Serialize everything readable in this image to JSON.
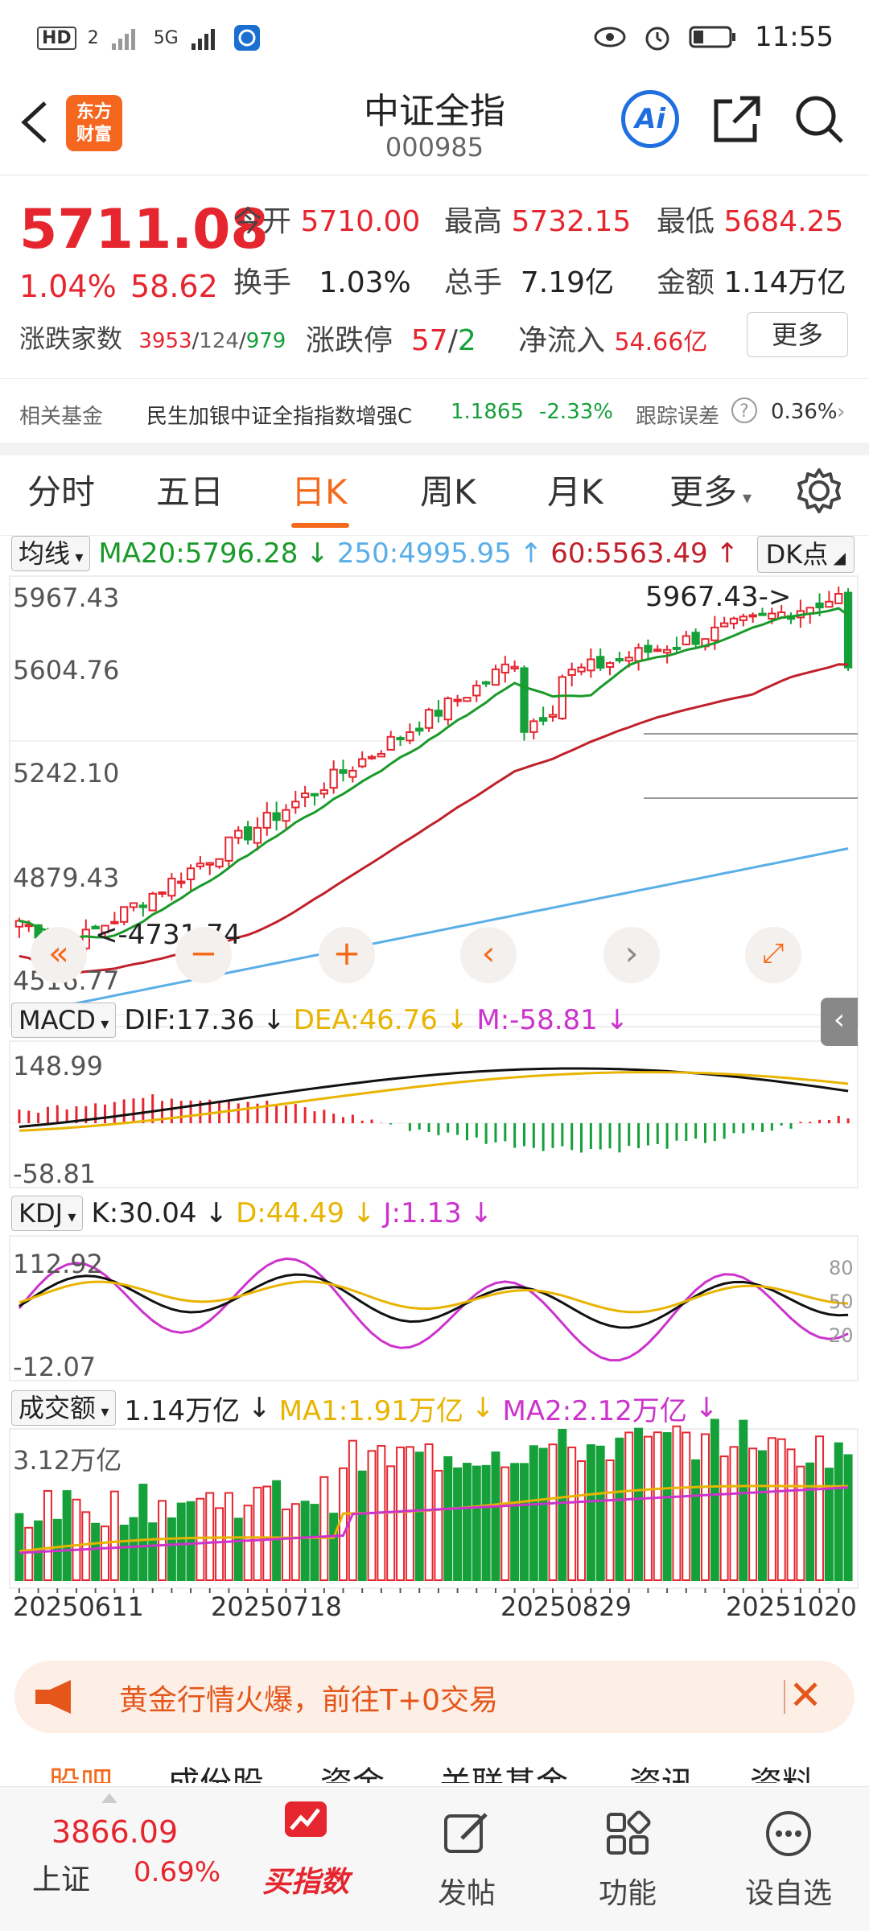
{
  "status_bar": {
    "left": [
      "HD",
      "2",
      "5G"
    ],
    "time": "11:55"
  },
  "header": {
    "logo_line1": "东方",
    "logo_line2": "财富",
    "title": "中证全指",
    "code": "000985",
    "ai_label": "Ai"
  },
  "quote": {
    "price": "5711.08",
    "change_pct": "1.04%",
    "change": "58.62",
    "open_label": "今开",
    "open": "5710.00",
    "high_label": "最高",
    "high": "5732.15",
    "low_label": "最低",
    "low": "5684.25",
    "turnover_label": "换手",
    "turnover": "1.03%",
    "volume_label": "总手",
    "volume": "7.19亿",
    "amount_label": "金额",
    "amount": "1.14万亿",
    "updown_label": "涨跌家数",
    "up": "3953",
    "flat": "124",
    "down": "979",
    "limit_label": "涨跌停",
    "limit_up": "57",
    "limit_down": "2",
    "netflow_label": "净流入",
    "netflow": "54.66亿",
    "more": "更多"
  },
  "fund": {
    "label": "相关基金",
    "name": "民生加银中证全指指数增强C",
    "nav": "1.1865",
    "chg": "-2.33%",
    "err_label": "跟踪误差",
    "err_value": "0.36%"
  },
  "tabs": [
    "分时",
    "五日",
    "日K",
    "周K",
    "月K",
    "更多"
  ],
  "ma_row": {
    "selector": "均线",
    "ma20": "MA20:5796.28",
    "ma250": "250:4995.95",
    "ma60": "60:5563.49",
    "dk": "DK点"
  },
  "kline_axis": [
    "5967.43",
    "5604.76",
    "5242.10",
    "4879.43",
    "4516.77"
  ],
  "kline_annot": {
    "high": "5967.43->",
    "low": "<-4731.74"
  },
  "macd_row": {
    "selector": "MACD",
    "dif": "DIF:17.36",
    "dea": "DEA:46.76",
    "m": "M:-58.81",
    "top": "148.99",
    "bottom": "-58.81"
  },
  "kdj_row": {
    "selector": "KDJ",
    "k": "K:30.04",
    "d": "D:44.49",
    "j": "J:1.13",
    "top": "112.92",
    "bottom": "-12.07",
    "r80": "80",
    "r50": "50",
    "r20": "20"
  },
  "vol_row": {
    "selector": "成交额",
    "val": "1.14万亿",
    "ma1": "MA1:1.91万亿",
    "ma2": "MA2:2.12万亿",
    "top": "3.12万亿"
  },
  "dates": [
    "20250611",
    "20250718",
    "20250829",
    "20251020"
  ],
  "banner": {
    "text": "黄金行情火爆，前往T+0交易"
  },
  "subtabs": [
    "股吧",
    "成份股",
    "资金",
    "关联基金",
    "资讯",
    "资料"
  ],
  "bottom_nav": {
    "sh_value": "3866.09",
    "sh_label": "上证",
    "sh_pct": "0.69%",
    "buy": "买指数",
    "post": "发帖",
    "func": "功能",
    "watch": "设自选"
  },
  "colors": {
    "up": "#e5262f",
    "down": "#15a03a",
    "accent": "#f56a1a",
    "ma20": "#1a9a2a",
    "ma60": "#c0212a",
    "ma250": "#5aaee8",
    "dea": "#e8b400",
    "j": "#cc33cc"
  },
  "chart_data": {
    "type": "candlestick",
    "x": [
      "20250611",
      "20250718",
      "20250829",
      "20251020"
    ],
    "ylim": [
      4516.77,
      5967.43
    ],
    "high": 5967.43,
    "low": 4731.74,
    "last_close": 5711.08
  }
}
